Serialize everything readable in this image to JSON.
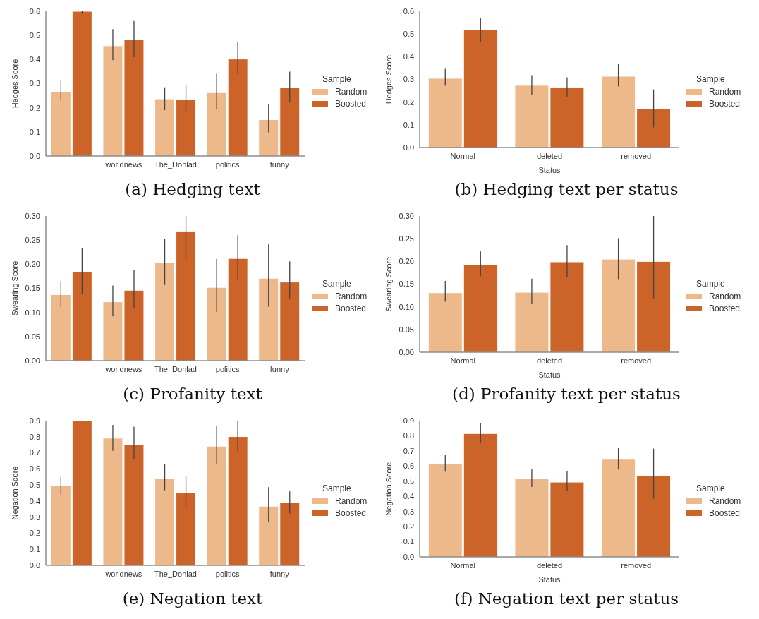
{
  "chart_data": [
    {
      "type": "bar",
      "title": "(a) Hedging text",
      "ylabel": "Hedges Score",
      "legend_title": "Sample",
      "legend": "right",
      "categories": [
        null,
        "worldnews",
        "The_Donlad",
        "politics",
        "funny"
      ],
      "ylim": [
        0,
        0.6
      ],
      "yticks": [
        {
          "value": 0,
          "label": "0.0"
        },
        0.1,
        0.2,
        0.3,
        0.4,
        0.5,
        0.6
      ],
      "series": [
        {
          "name": "Random",
          "color": "#edb88a",
          "values": [
            0.266,
            0.457,
            0.237,
            0.263,
            0.151
          ],
          "errors": [
            [
              0.233,
              0.312
            ],
            [
              0.397,
              0.526
            ],
            [
              0.19,
              0.285
            ],
            [
              0.196,
              0.341
            ],
            [
              0.098,
              0.214
            ]
          ]
        },
        {
          "name": "Boosted",
          "color": "#cc6328",
          "values": [
            0.6,
            0.482,
            0.233,
            0.402,
            0.283
          ],
          "errors": [
            [
              0.59,
              0.6
            ],
            [
              0.41,
              0.56
            ],
            [
              0.18,
              0.296
            ],
            [
              0.341,
              0.473
            ],
            [
              0.222,
              0.35
            ]
          ]
        }
      ]
    },
    {
      "type": "bar",
      "title": "(b) Hedging text per status",
      "xlabel": "Status",
      "ylabel": "Hedges Score",
      "legend_title": "Sample",
      "legend": "right",
      "categories": [
        "Normal",
        "deleted",
        "removed"
      ],
      "ylim": [
        0,
        0.6
      ],
      "yticks": [
        {
          "value": 0,
          "label": "0.0"
        },
        0.1,
        0.2,
        0.3,
        0.4,
        0.5,
        0.6
      ],
      "series": [
        {
          "name": "Random",
          "color": "#edb88a",
          "values": [
            0.305,
            0.274,
            0.314
          ],
          "errors": [
            [
              0.272,
              0.347
            ],
            [
              0.233,
              0.319
            ],
            [
              0.269,
              0.369
            ]
          ]
        },
        {
          "name": "Boosted",
          "color": "#cc6328",
          "values": [
            0.518,
            0.265,
            0.171
          ],
          "errors": [
            [
              0.466,
              0.569
            ],
            [
              0.223,
              0.309
            ],
            [
              0.089,
              0.256
            ]
          ]
        }
      ]
    },
    {
      "type": "bar",
      "title": "(c) Profanity text",
      "ylabel": "Swearing Score",
      "legend_title": "Sample",
      "legend": "right",
      "categories": [
        null,
        "worldnews",
        "The_Donlad",
        "politics",
        "funny"
      ],
      "ylim": [
        0,
        0.3
      ],
      "yticks": [
        {
          "value": 0,
          "label": "0.00"
        },
        0.05,
        {
          "value": 0.1,
          "label": "0.10"
        },
        0.15,
        {
          "value": 0.2,
          "label": "0.20"
        },
        0.25,
        {
          "value": 0.3,
          "label": "0.30"
        }
      ],
      "series": [
        {
          "name": "Random",
          "color": "#edb88a",
          "values": [
            0.137,
            0.122,
            0.203,
            0.152,
            0.171
          ],
          "errors": [
            [
              0.111,
              0.165
            ],
            [
              0.092,
              0.156
            ],
            [
              0.157,
              0.253
            ],
            [
              0.101,
              0.211
            ],
            [
              0.112,
              0.241
            ]
          ]
        },
        {
          "name": "Boosted",
          "color": "#cc6328",
          "values": [
            0.184,
            0.146,
            0.268,
            0.212,
            0.163
          ],
          "errors": [
            [
              0.139,
              0.234
            ],
            [
              0.109,
              0.188
            ],
            [
              0.209,
              0.3
            ],
            [
              0.169,
              0.26
            ],
            [
              0.127,
              0.206
            ]
          ]
        }
      ]
    },
    {
      "type": "bar",
      "title": "(d) Profanity text per status",
      "xlabel": "Status",
      "ylabel": "Swearing Score",
      "legend_title": "Sample",
      "legend": "right",
      "categories": [
        "Normal",
        "deleted",
        "removed"
      ],
      "ylim": [
        0,
        0.3
      ],
      "yticks": [
        {
          "value": 0,
          "label": "0.00"
        },
        0.05,
        {
          "value": 0.1,
          "label": "0.10"
        },
        0.15,
        {
          "value": 0.2,
          "label": "0.20"
        },
        0.25,
        {
          "value": 0.3,
          "label": "0.30"
        }
      ],
      "series": [
        {
          "name": "Random",
          "color": "#edb88a",
          "values": [
            0.131,
            0.132,
            0.205
          ],
          "errors": [
            [
              0.111,
              0.157
            ],
            [
              0.106,
              0.162
            ],
            [
              0.161,
              0.251
            ]
          ]
        },
        {
          "name": "Boosted",
          "color": "#cc6328",
          "values": [
            0.192,
            0.199,
            0.2
          ],
          "errors": [
            [
              0.167,
              0.222
            ],
            [
              0.165,
              0.236
            ],
            [
              0.118,
              0.3
            ]
          ]
        }
      ]
    },
    {
      "type": "bar",
      "title": "(e) Negation text",
      "ylabel": "Negation Score",
      "legend_title": "Sample",
      "legend": "right",
      "categories": [
        null,
        "worldnews",
        "The_Donlad",
        "politics",
        "funny"
      ],
      "ylim": [
        0,
        0.9
      ],
      "yticks": [
        {
          "value": 0,
          "label": "0.0"
        },
        0.1,
        0.2,
        0.3,
        0.4,
        0.5,
        0.6,
        0.7,
        0.8,
        0.9
      ],
      "series": [
        {
          "name": "Random",
          "color": "#edb88a",
          "values": [
            0.494,
            0.791,
            0.542,
            0.741,
            0.368
          ],
          "errors": [
            [
              0.441,
              0.55
            ],
            [
              0.712,
              0.874
            ],
            [
              0.467,
              0.628
            ],
            [
              0.632,
              0.868
            ],
            [
              0.269,
              0.486
            ]
          ]
        },
        {
          "name": "Boosted",
          "color": "#cc6328",
          "values": [
            0.9,
            0.751,
            0.452,
            0.801,
            0.389
          ],
          "errors": [
            null,
            [
              0.66,
              0.863
            ],
            [
              0.364,
              0.555
            ],
            [
              0.704,
              0.9
            ],
            [
              0.322,
              0.46
            ]
          ]
        }
      ]
    },
    {
      "type": "bar",
      "title": "(f) Negation text per status",
      "xlabel": "Status",
      "ylabel": "Negation Score",
      "legend_title": "Sample",
      "legend": "right",
      "categories": [
        "Normal",
        "deleted",
        "removed"
      ],
      "ylim": [
        0,
        0.9
      ],
      "yticks": [
        {
          "value": 0,
          "label": "0.0"
        },
        0.1,
        0.2,
        0.3,
        0.4,
        0.5,
        0.6,
        0.7,
        0.8,
        0.9
      ],
      "series": [
        {
          "name": "Random",
          "color": "#edb88a",
          "values": [
            0.617,
            0.52,
            0.645
          ],
          "errors": [
            [
              0.563,
              0.674
            ],
            [
              0.462,
              0.583
            ],
            [
              0.578,
              0.718
            ]
          ]
        },
        {
          "name": "Boosted",
          "color": "#cc6328",
          "values": [
            0.815,
            0.494,
            0.538
          ],
          "errors": [
            [
              0.755,
              0.883
            ],
            [
              0.435,
              0.565
            ],
            [
              0.382,
              0.715
            ]
          ]
        }
      ]
    }
  ]
}
